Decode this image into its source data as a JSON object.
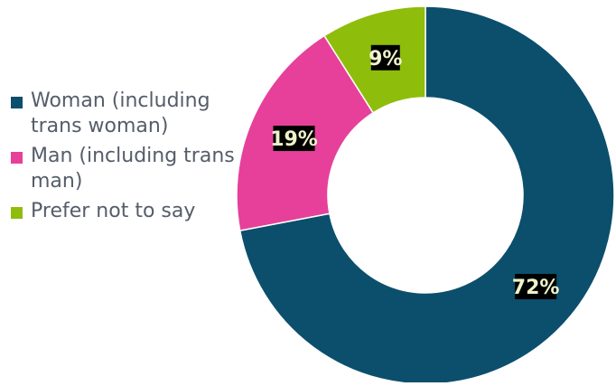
{
  "chart_data": {
    "type": "pie",
    "donut": true,
    "title": "",
    "legend_position": "left",
    "categories": [
      "Woman (including trans woman)",
      "Man (including trans man)",
      "Prefer not to say"
    ],
    "values": [
      72,
      19,
      9
    ],
    "value_labels": [
      "72%",
      "19%",
      "9%"
    ],
    "colors": [
      "#0b4f6c",
      "#e6409a",
      "#8fbd0b"
    ],
    "label_style": {
      "text_color": "#eef3c9",
      "background": "#000000"
    }
  }
}
